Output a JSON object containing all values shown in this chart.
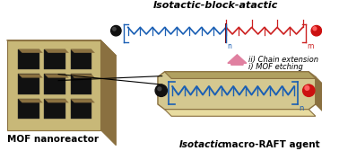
{
  "bg_color": "#ffffff",
  "mof_color_face": "#c8b878",
  "mof_color_dark": "#8a7040",
  "mof_color_black": "#111111",
  "tube_color": "#d4c890",
  "tube_dark": "#8a7040",
  "blue_chain": "#1a5fb4",
  "red_chain": "#cc2020",
  "black_bead": "#111111",
  "red_bead": "#cc1010",
  "pink_arrow": "#e080a0",
  "title_italic": "Isotactic",
  "title_normal": " macro-RAFT agent",
  "label_bottom": "Isotactic-block-atactic",
  "label_mof": "MOF nanoreactor",
  "text_i": "i) MOF etching",
  "text_ii": "ii) Chain extension"
}
